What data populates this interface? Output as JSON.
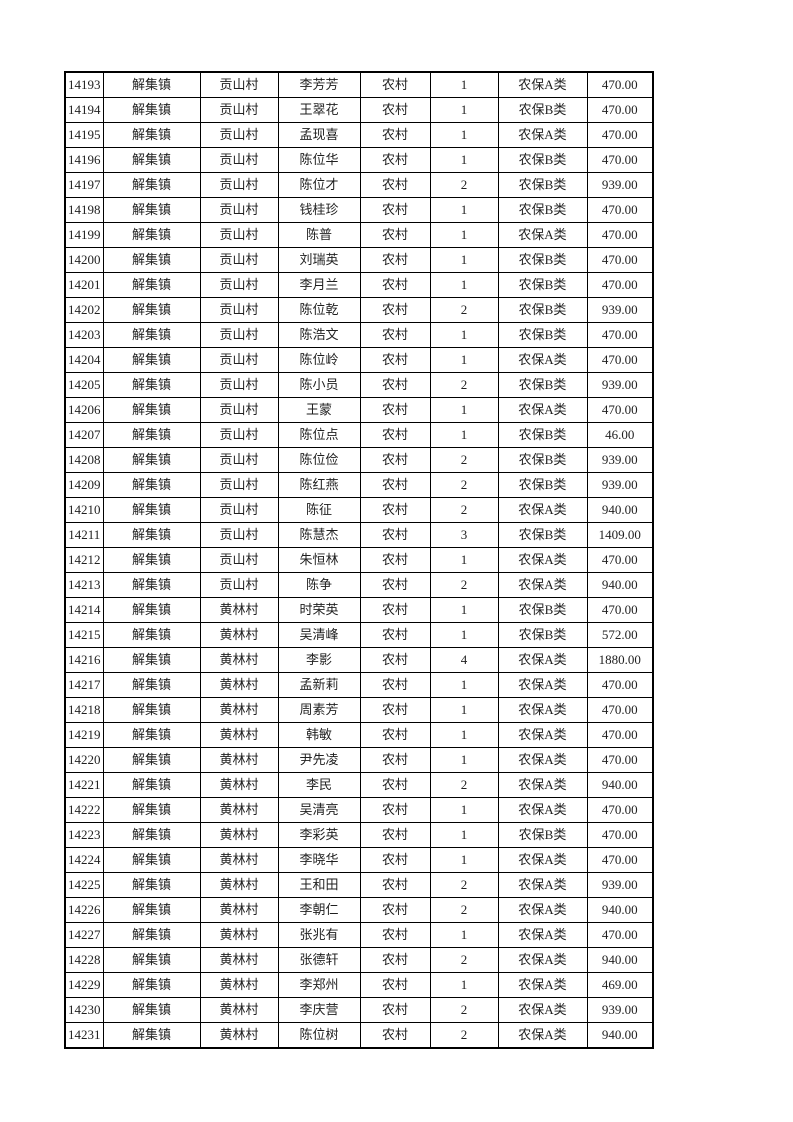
{
  "page": {
    "background_color": "#ffffff",
    "table_border_color": "#000000",
    "table_text_color": "#1f1f1f"
  },
  "table": {
    "columns": [
      "serial",
      "town",
      "village",
      "name",
      "category",
      "persons",
      "scheme",
      "amount"
    ],
    "rows": [
      [
        "14193",
        "解集镇",
        "贡山村",
        "李芳芳",
        "农村",
        "1",
        "农保A类",
        "470.00"
      ],
      [
        "14194",
        "解集镇",
        "贡山村",
        "王翠花",
        "农村",
        "1",
        "农保B类",
        "470.00"
      ],
      [
        "14195",
        "解集镇",
        "贡山村",
        "孟现喜",
        "农村",
        "1",
        "农保A类",
        "470.00"
      ],
      [
        "14196",
        "解集镇",
        "贡山村",
        "陈位华",
        "农村",
        "1",
        "农保B类",
        "470.00"
      ],
      [
        "14197",
        "解集镇",
        "贡山村",
        "陈位才",
        "农村",
        "2",
        "农保B类",
        "939.00"
      ],
      [
        "14198",
        "解集镇",
        "贡山村",
        "钱桂珍",
        "农村",
        "1",
        "农保B类",
        "470.00"
      ],
      [
        "14199",
        "解集镇",
        "贡山村",
        "陈普",
        "农村",
        "1",
        "农保A类",
        "470.00"
      ],
      [
        "14200",
        "解集镇",
        "贡山村",
        "刘瑞英",
        "农村",
        "1",
        "农保B类",
        "470.00"
      ],
      [
        "14201",
        "解集镇",
        "贡山村",
        "李月兰",
        "农村",
        "1",
        "农保B类",
        "470.00"
      ],
      [
        "14202",
        "解集镇",
        "贡山村",
        "陈位乾",
        "农村",
        "2",
        "农保B类",
        "939.00"
      ],
      [
        "14203",
        "解集镇",
        "贡山村",
        "陈浩文",
        "农村",
        "1",
        "农保B类",
        "470.00"
      ],
      [
        "14204",
        "解集镇",
        "贡山村",
        "陈位岭",
        "农村",
        "1",
        "农保A类",
        "470.00"
      ],
      [
        "14205",
        "解集镇",
        "贡山村",
        "陈小员",
        "农村",
        "2",
        "农保B类",
        "939.00"
      ],
      [
        "14206",
        "解集镇",
        "贡山村",
        "王蒙",
        "农村",
        "1",
        "农保A类",
        "470.00"
      ],
      [
        "14207",
        "解集镇",
        "贡山村",
        "陈位点",
        "农村",
        "1",
        "农保B类",
        "46.00"
      ],
      [
        "14208",
        "解集镇",
        "贡山村",
        "陈位俭",
        "农村",
        "2",
        "农保B类",
        "939.00"
      ],
      [
        "14209",
        "解集镇",
        "贡山村",
        "陈红燕",
        "农村",
        "2",
        "农保B类",
        "939.00"
      ],
      [
        "14210",
        "解集镇",
        "贡山村",
        "陈征",
        "农村",
        "2",
        "农保A类",
        "940.00"
      ],
      [
        "14211",
        "解集镇",
        "贡山村",
        "陈慧杰",
        "农村",
        "3",
        "农保B类",
        "1409.00"
      ],
      [
        "14212",
        "解集镇",
        "贡山村",
        "朱恒林",
        "农村",
        "1",
        "农保A类",
        "470.00"
      ],
      [
        "14213",
        "解集镇",
        "贡山村",
        "陈争",
        "农村",
        "2",
        "农保A类",
        "940.00"
      ],
      [
        "14214",
        "解集镇",
        "黄林村",
        "时荣英",
        "农村",
        "1",
        "农保B类",
        "470.00"
      ],
      [
        "14215",
        "解集镇",
        "黄林村",
        "吴清峰",
        "农村",
        "1",
        "农保B类",
        "572.00"
      ],
      [
        "14216",
        "解集镇",
        "黄林村",
        "李影",
        "农村",
        "4",
        "农保A类",
        "1880.00"
      ],
      [
        "14217",
        "解集镇",
        "黄林村",
        "孟新莉",
        "农村",
        "1",
        "农保A类",
        "470.00"
      ],
      [
        "14218",
        "解集镇",
        "黄林村",
        "周素芳",
        "农村",
        "1",
        "农保A类",
        "470.00"
      ],
      [
        "14219",
        "解集镇",
        "黄林村",
        "韩敏",
        "农村",
        "1",
        "农保A类",
        "470.00"
      ],
      [
        "14220",
        "解集镇",
        "黄林村",
        "尹先凌",
        "农村",
        "1",
        "农保A类",
        "470.00"
      ],
      [
        "14221",
        "解集镇",
        "黄林村",
        "李民",
        "农村",
        "2",
        "农保A类",
        "940.00"
      ],
      [
        "14222",
        "解集镇",
        "黄林村",
        "吴清亮",
        "农村",
        "1",
        "农保A类",
        "470.00"
      ],
      [
        "14223",
        "解集镇",
        "黄林村",
        "李彩英",
        "农村",
        "1",
        "农保B类",
        "470.00"
      ],
      [
        "14224",
        "解集镇",
        "黄林村",
        "李晓华",
        "农村",
        "1",
        "农保A类",
        "470.00"
      ],
      [
        "14225",
        "解集镇",
        "黄林村",
        "王和田",
        "农村",
        "2",
        "农保A类",
        "939.00"
      ],
      [
        "14226",
        "解集镇",
        "黄林村",
        "李朝仁",
        "农村",
        "2",
        "农保A类",
        "940.00"
      ],
      [
        "14227",
        "解集镇",
        "黄林村",
        "张兆有",
        "农村",
        "1",
        "农保A类",
        "470.00"
      ],
      [
        "14228",
        "解集镇",
        "黄林村",
        "张德轩",
        "农村",
        "2",
        "农保A类",
        "940.00"
      ],
      [
        "14229",
        "解集镇",
        "黄林村",
        "李郑州",
        "农村",
        "1",
        "农保A类",
        "469.00"
      ],
      [
        "14230",
        "解集镇",
        "黄林村",
        "李庆营",
        "农村",
        "2",
        "农保A类",
        "939.00"
      ],
      [
        "14231",
        "解集镇",
        "黄林村",
        "陈位树",
        "农村",
        "2",
        "农保A类",
        "940.00"
      ]
    ]
  }
}
